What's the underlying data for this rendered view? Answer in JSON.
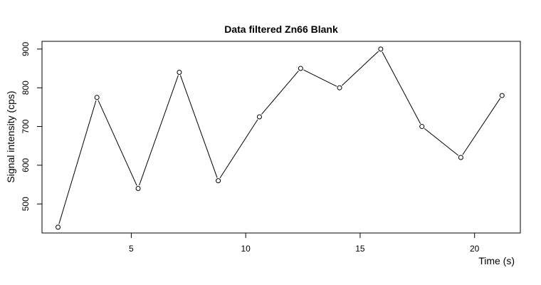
{
  "chart_data": {
    "type": "line",
    "title": "Data filtered Zn66 Blank",
    "xlabel": "Time (s)",
    "ylabel": "Signal intensity (cps)",
    "xlim": [
      1.1,
      22.0
    ],
    "ylim": [
      425,
      920
    ],
    "x_ticks": [
      5,
      10,
      15,
      20
    ],
    "x_tick_labels": [
      "5",
      "10",
      "15",
      "20"
    ],
    "y_ticks": [
      500,
      600,
      700,
      800,
      900
    ],
    "y_tick_labels": [
      "500",
      "600",
      "700",
      "800",
      "900"
    ],
    "grid": false,
    "marker": "open-circle",
    "series": [
      {
        "name": "Zn66 Blank",
        "x": [
          1.8,
          3.5,
          5.3,
          7.1,
          8.8,
          10.6,
          12.4,
          14.1,
          15.9,
          17.7,
          19.4,
          21.2
        ],
        "y": [
          440,
          775,
          540,
          840,
          560,
          725,
          850,
          800,
          900,
          700,
          620,
          780
        ]
      }
    ],
    "colors": {
      "line": "#000000",
      "marker_stroke": "#000000",
      "marker_fill": "#ffffff",
      "axis": "#000000"
    }
  }
}
